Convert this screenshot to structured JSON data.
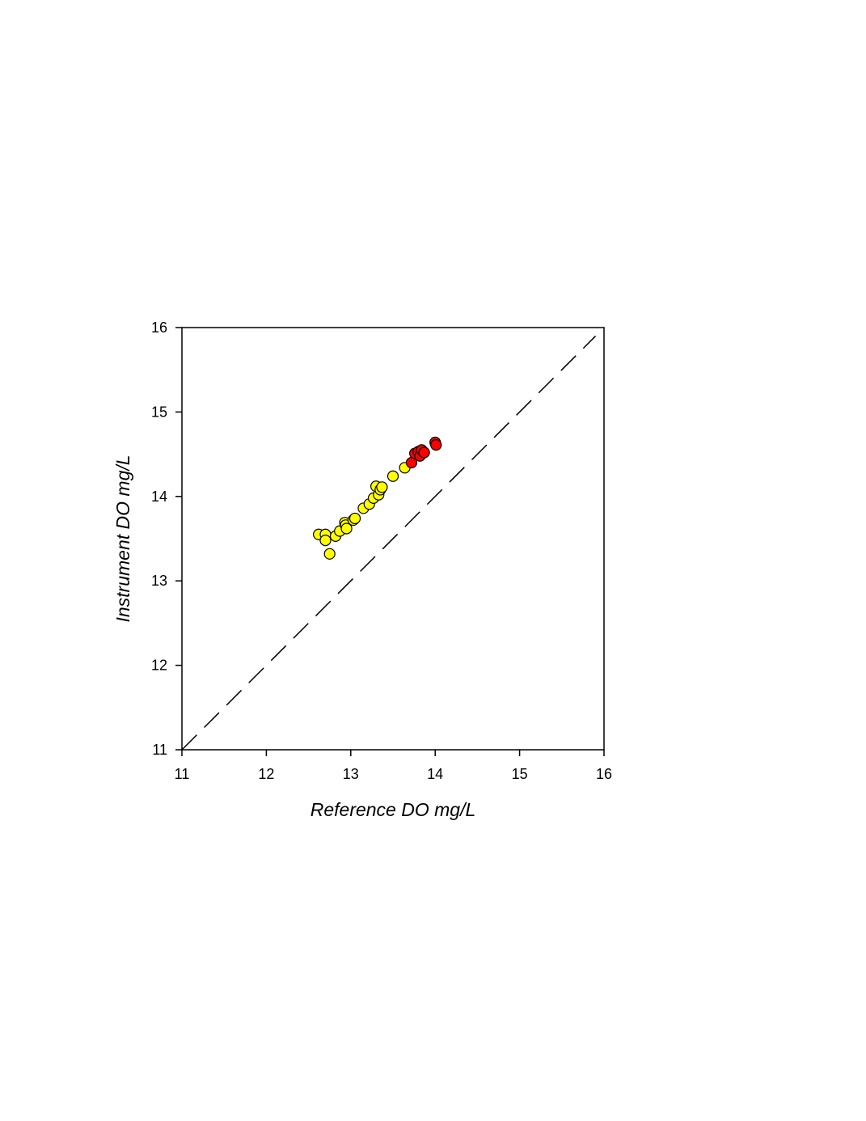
{
  "chart_data": {
    "type": "scatter",
    "xlabel": "Reference DO mg/L",
    "ylabel": "Instrument DO mg/L",
    "xlim": [
      11,
      16
    ],
    "ylim": [
      11,
      16
    ],
    "x_ticks": [
      "11",
      "12",
      "13",
      "14",
      "15",
      "16"
    ],
    "y_ticks": [
      "11",
      "12",
      "13",
      "14",
      "15",
      "16"
    ],
    "grid": false,
    "legend": "none",
    "reference_line": {
      "style": "dashed",
      "from": [
        11,
        11
      ],
      "to": [
        15.9,
        15.9
      ]
    },
    "series": [
      {
        "color": "#ffff00",
        "x": [
          12.62,
          12.7,
          12.7,
          12.75,
          12.82,
          12.87,
          12.93,
          12.94,
          12.95,
          13.03,
          13.05,
          13.15,
          13.22,
          13.27,
          13.3,
          13.33,
          13.35,
          13.37,
          13.5,
          13.64
        ],
        "y": [
          13.55,
          13.55,
          13.48,
          13.32,
          13.53,
          13.59,
          13.69,
          13.66,
          13.62,
          13.72,
          13.74,
          13.86,
          13.91,
          13.98,
          14.12,
          14.02,
          14.08,
          14.11,
          14.24,
          14.34
        ]
      },
      {
        "color": "#ff0000",
        "x": [
          13.72,
          13.76,
          13.8,
          13.82,
          13.84,
          13.87,
          14.0,
          14.01
        ],
        "y": [
          14.4,
          14.51,
          14.53,
          14.48,
          14.55,
          14.52,
          14.64,
          14.61
        ]
      }
    ]
  }
}
